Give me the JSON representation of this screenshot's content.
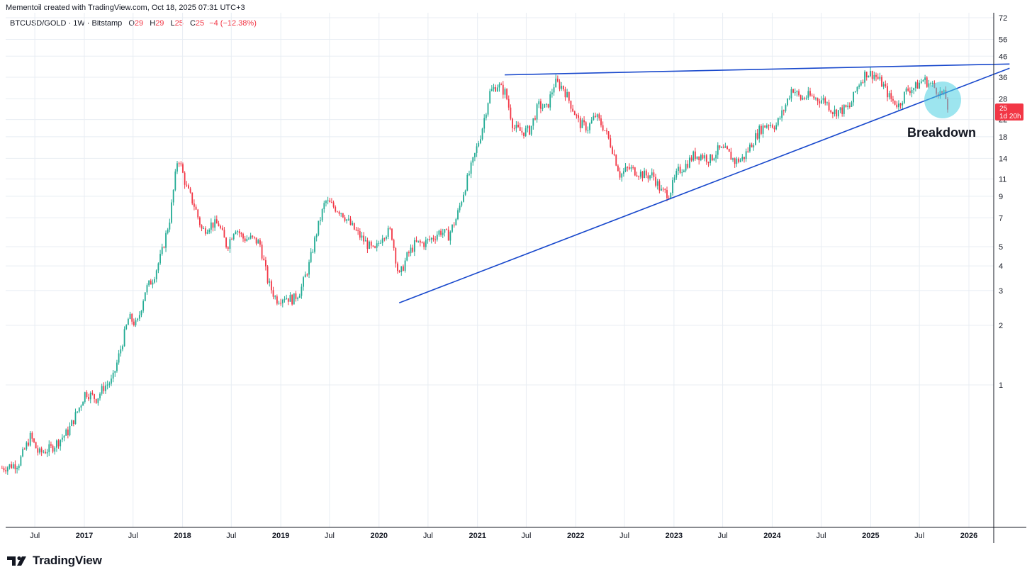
{
  "header": {
    "credit": "Mementoil created with TradingView.com, Oct 18, 2025 07:31 UTC+3"
  },
  "legend": {
    "symbol": "BTCUSD/GOLD · 1W · Bitstamp",
    "open_label": "O",
    "open_value": "29",
    "high_label": "H",
    "high_value": "29",
    "low_label": "L",
    "low_value": "25",
    "close_label": "C",
    "close_value": "25",
    "change": "−4 (−12.38%)"
  },
  "price_badge": {
    "value": "25",
    "countdown": "1d 20h",
    "color": "#f23645"
  },
  "annotation": {
    "text": "Breakdown",
    "circle_color": "#4dd0e1"
  },
  "footer": {
    "brand": "TradingView"
  },
  "colors": {
    "up": "#22ab94",
    "down": "#f23645",
    "trendline": "#1848cc",
    "grid": "#e8edf3"
  },
  "chart_data": {
    "type": "candlestick",
    "title": "BTCUSD/GOLD · 1W · Bitstamp",
    "scale": "log",
    "y_ticks": [
      1,
      2,
      3,
      4,
      5,
      7,
      9,
      11,
      14,
      18,
      22,
      28,
      36,
      46,
      56,
      72
    ],
    "y_range": [
      0.33,
      72
    ],
    "x_ticks": [
      "Jul",
      "2017",
      "Jul",
      "2018",
      "Jul",
      "2019",
      "Jul",
      "2020",
      "Jul",
      "2021",
      "Jul",
      "2022",
      "Jul",
      "2023",
      "Jul",
      "2024",
      "Jul",
      "2025",
      "Jul",
      "2026"
    ],
    "x_range": [
      "2016-03-01",
      "2026-06-01"
    ],
    "grid": true,
    "price_path": [
      [
        "2016-03-01",
        0.38
      ],
      [
        "2016-05-01",
        0.4
      ],
      [
        "2016-06-15",
        0.55
      ],
      [
        "2016-07-15",
        0.45
      ],
      [
        "2016-09-01",
        0.48
      ],
      [
        "2016-11-01",
        0.58
      ],
      [
        "2016-12-15",
        0.78
      ],
      [
        "2017-01-05",
        0.92
      ],
      [
        "2017-02-15",
        0.85
      ],
      [
        "2017-03-15",
        0.98
      ],
      [
        "2017-04-15",
        1.05
      ],
      [
        "2017-05-20",
        1.6
      ],
      [
        "2017-06-15",
        2.2
      ],
      [
        "2017-07-15",
        2.0
      ],
      [
        "2017-08-15",
        3.0
      ],
      [
        "2017-09-15",
        3.5
      ],
      [
        "2017-10-15",
        4.6
      ],
      [
        "2017-11-15",
        7.0
      ],
      [
        "2017-12-15",
        14.5
      ],
      [
        "2018-01-15",
        10.0
      ],
      [
        "2018-02-15",
        8.0
      ],
      [
        "2018-03-15",
        6.0
      ],
      [
        "2018-04-15",
        6.5
      ],
      [
        "2018-05-15",
        6.5
      ],
      [
        "2018-06-15",
        5.0
      ],
      [
        "2018-07-15",
        6.3
      ],
      [
        "2018-08-15",
        5.5
      ],
      [
        "2018-09-15",
        5.5
      ],
      [
        "2018-10-15",
        5.2
      ],
      [
        "2018-11-15",
        3.3
      ],
      [
        "2018-12-15",
        2.7
      ],
      [
        "2019-01-15",
        2.8
      ],
      [
        "2019-02-15",
        2.7
      ],
      [
        "2019-03-15",
        3.0
      ],
      [
        "2019-04-15",
        4.0
      ],
      [
        "2019-05-15",
        6.0
      ],
      [
        "2019-06-15",
        8.5
      ],
      [
        "2019-07-15",
        8.0
      ],
      [
        "2019-08-15",
        7.5
      ],
      [
        "2019-09-15",
        6.5
      ],
      [
        "2019-10-15",
        5.8
      ],
      [
        "2019-11-15",
        5.2
      ],
      [
        "2019-12-15",
        4.7
      ],
      [
        "2020-01-15",
        5.8
      ],
      [
        "2020-02-15",
        6.0
      ],
      [
        "2020-03-15",
        3.5
      ],
      [
        "2020-04-15",
        4.5
      ],
      [
        "2020-05-15",
        5.2
      ],
      [
        "2020-06-15",
        5.2
      ],
      [
        "2020-07-15",
        5.5
      ],
      [
        "2020-08-15",
        6.0
      ],
      [
        "2020-09-15",
        5.7
      ],
      [
        "2020-10-15",
        7.0
      ],
      [
        "2020-11-15",
        10.0
      ],
      [
        "2020-12-15",
        13.5
      ],
      [
        "2021-01-15",
        19.0
      ],
      [
        "2021-02-15",
        30.0
      ],
      [
        "2021-03-15",
        33.0
      ],
      [
        "2021-04-15",
        30.0
      ],
      [
        "2021-05-15",
        20.0
      ],
      [
        "2021-06-15",
        19.0
      ],
      [
        "2021-07-15",
        19.5
      ],
      [
        "2021-08-15",
        26.0
      ],
      [
        "2021-09-15",
        25.0
      ],
      [
        "2021-10-15",
        34.0
      ],
      [
        "2021-11-15",
        32.0
      ],
      [
        "2021-12-15",
        26.0
      ],
      [
        "2022-01-15",
        21.0
      ],
      [
        "2022-02-15",
        20.0
      ],
      [
        "2022-03-15",
        23.0
      ],
      [
        "2022-04-15",
        20.0
      ],
      [
        "2022-05-15",
        16.0
      ],
      [
        "2022-06-15",
        11.5
      ],
      [
        "2022-07-15",
        12.5
      ],
      [
        "2022-08-15",
        12.0
      ],
      [
        "2022-09-15",
        11.5
      ],
      [
        "2022-10-15",
        11.5
      ],
      [
        "2022-11-15",
        9.5
      ],
      [
        "2022-12-15",
        9.3
      ],
      [
        "2023-01-15",
        12.0
      ],
      [
        "2023-02-15",
        13.0
      ],
      [
        "2023-03-15",
        14.5
      ],
      [
        "2023-04-15",
        14.5
      ],
      [
        "2023-05-15",
        13.8
      ],
      [
        "2023-06-15",
        15.5
      ],
      [
        "2023-07-15",
        15.2
      ],
      [
        "2023-08-15",
        13.5
      ],
      [
        "2023-09-15",
        14.0
      ],
      [
        "2023-10-15",
        16.5
      ],
      [
        "2023-11-15",
        19.5
      ],
      [
        "2023-12-15",
        21.0
      ],
      [
        "2024-01-15",
        20.5
      ],
      [
        "2024-02-15",
        25.0
      ],
      [
        "2024-03-15",
        32.0
      ],
      [
        "2024-04-15",
        28.0
      ],
      [
        "2024-05-15",
        29.0
      ],
      [
        "2024-06-15",
        28.0
      ],
      [
        "2024-07-15",
        27.5
      ],
      [
        "2024-08-15",
        24.0
      ],
      [
        "2024-09-15",
        24.5
      ],
      [
        "2024-10-15",
        25.5
      ],
      [
        "2024-11-15",
        33.0
      ],
      [
        "2024-12-15",
        38.0
      ],
      [
        "2025-01-15",
        37.0
      ],
      [
        "2025-02-15",
        33.0
      ],
      [
        "2025-03-15",
        28.0
      ],
      [
        "2025-04-15",
        26.0
      ],
      [
        "2025-05-15",
        31.0
      ],
      [
        "2025-06-15",
        32.0
      ],
      [
        "2025-07-15",
        35.0
      ],
      [
        "2025-08-15",
        33.0
      ],
      [
        "2025-09-15",
        30.0
      ],
      [
        "2025-10-05",
        29.0
      ],
      [
        "2025-10-15",
        25.0
      ]
    ],
    "trendlines": [
      {
        "from": [
          "2021-04-12",
          37.0
        ],
        "to": [
          "2026-06-01",
          42.0
        ]
      },
      {
        "from": [
          "2020-03-16",
          2.6
        ],
        "to": [
          "2026-06-01",
          40.0
        ]
      }
    ]
  }
}
